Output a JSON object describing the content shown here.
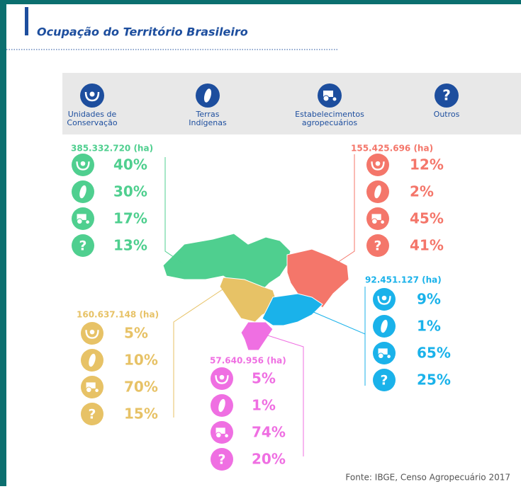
{
  "header": {
    "title": "Ocupação do Território Brasileiro"
  },
  "legend": [
    {
      "lines": [
        "Unidades de",
        "Conservação"
      ]
    },
    {
      "lines": [
        "Terras",
        "Indígenas"
      ]
    },
    {
      "lines": [
        "Estabelecimentos",
        "agropecuários"
      ]
    },
    {
      "lines": [
        "Outros"
      ],
      "symbol": "?"
    }
  ],
  "regions": [
    {
      "total": "385.332.720 (ha)",
      "color": "#4fcf8f",
      "shares": [
        "40%",
        "30%",
        "17%",
        "13%"
      ]
    },
    {
      "total": "155.425.696 (ha)",
      "color": "#f4766a",
      "shares": [
        "12%",
        "2%",
        "45%",
        "41%"
      ]
    },
    {
      "total": "92.451.127 (ha)",
      "color": "#1ab2ea",
      "shares": [
        "9%",
        "1%",
        "65%",
        "25%"
      ]
    },
    {
      "total": "160.637.148 (ha)",
      "color": "#e7c266",
      "shares": [
        "5%",
        "10%",
        "70%",
        "15%"
      ]
    },
    {
      "total": "57.640.956 (ha)",
      "color": "#ef6fe2",
      "shares": [
        "5%",
        "1%",
        "74%",
        "20%"
      ]
    }
  ],
  "source": "Fonte: IBGE, Censo Agropecuário 2017"
}
